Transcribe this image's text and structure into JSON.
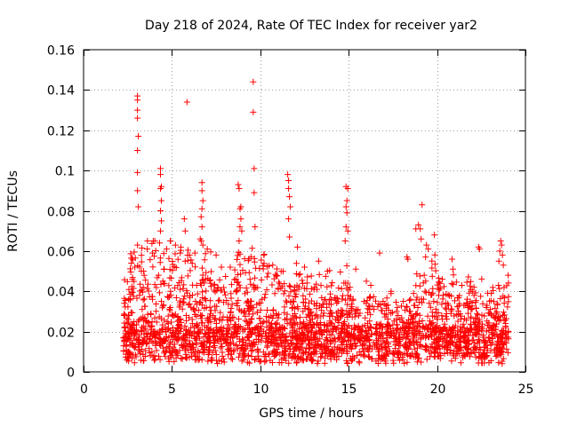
{
  "chart_data": {
    "type": "scatter",
    "title": "Day 218 of 2024, Rate Of TEC Index for receiver yar2",
    "xlabel": "GPS time / hours",
    "ylabel": "ROTI / TECUs",
    "xlim": [
      0,
      25
    ],
    "ylim": [
      0,
      0.16
    ],
    "xticks": [
      0,
      5,
      10,
      15,
      20,
      25
    ],
    "xtick_labels": [
      "0",
      "5",
      "10",
      "15",
      "20",
      "25"
    ],
    "yticks": [
      0,
      0.02,
      0.04,
      0.06,
      0.08,
      0.1,
      0.12,
      0.14,
      0.16
    ],
    "ytick_labels": [
      "0",
      "0.02",
      "0.04",
      "0.06",
      "0.08",
      "0.1",
      "0.12",
      "0.14",
      "0.16"
    ],
    "grid": true,
    "marker": "plus",
    "color": "#ff0000",
    "series": [
      {
        "name": "ROTI",
        "points": [
          [
            3.05,
            0.137
          ],
          [
            3.05,
            0.135
          ],
          [
            3.05,
            0.13
          ],
          [
            3.05,
            0.126
          ],
          [
            3.1,
            0.117
          ],
          [
            3.05,
            0.11
          ],
          [
            3.05,
            0.099
          ],
          [
            3.05,
            0.09
          ],
          [
            3.1,
            0.082
          ],
          [
            3.05,
            0.063
          ],
          [
            5.85,
            0.134
          ],
          [
            9.6,
            0.144
          ],
          [
            9.6,
            0.129
          ],
          [
            9.65,
            0.101
          ],
          [
            9.65,
            0.089
          ],
          [
            9.7,
            0.072
          ],
          [
            4.35,
            0.101
          ],
          [
            4.35,
            0.098
          ],
          [
            4.4,
            0.092
          ],
          [
            4.35,
            0.091
          ],
          [
            4.4,
            0.085
          ],
          [
            4.35,
            0.08
          ],
          [
            4.4,
            0.075
          ],
          [
            4.35,
            0.07
          ],
          [
            4.3,
            0.064
          ],
          [
            6.7,
            0.094
          ],
          [
            6.7,
            0.09
          ],
          [
            6.75,
            0.085
          ],
          [
            6.7,
            0.081
          ],
          [
            6.65,
            0.077
          ],
          [
            6.7,
            0.072
          ],
          [
            6.6,
            0.066
          ],
          [
            6.75,
            0.063
          ],
          [
            5.7,
            0.076
          ],
          [
            5.75,
            0.07
          ],
          [
            8.75,
            0.093
          ],
          [
            8.8,
            0.091
          ],
          [
            8.9,
            0.082
          ],
          [
            8.85,
            0.081
          ],
          [
            8.9,
            0.076
          ],
          [
            8.85,
            0.072
          ],
          [
            8.95,
            0.07
          ],
          [
            8.8,
            0.065
          ],
          [
            11.55,
            0.098
          ],
          [
            11.6,
            0.095
          ],
          [
            11.6,
            0.091
          ],
          [
            11.65,
            0.087
          ],
          [
            11.7,
            0.082
          ],
          [
            11.6,
            0.076
          ],
          [
            11.65,
            0.067
          ],
          [
            12.1,
            0.062
          ],
          [
            14.85,
            0.092
          ],
          [
            14.95,
            0.091
          ],
          [
            14.9,
            0.085
          ],
          [
            14.85,
            0.082
          ],
          [
            14.9,
            0.079
          ],
          [
            14.85,
            0.072
          ],
          [
            14.95,
            0.07
          ],
          [
            14.8,
            0.065
          ],
          [
            16.75,
            0.059
          ],
          [
            19.15,
            0.083
          ],
          [
            18.95,
            0.073
          ],
          [
            19.05,
            0.071
          ],
          [
            18.8,
            0.071
          ],
          [
            19.1,
            0.066
          ],
          [
            19.4,
            0.063
          ],
          [
            19.5,
            0.061
          ],
          [
            19.35,
            0.057
          ],
          [
            19.85,
            0.068
          ],
          [
            18.3,
            0.057
          ],
          [
            18.35,
            0.056
          ],
          [
            20.9,
            0.051
          ],
          [
            20.85,
            0.056
          ],
          [
            22.35,
            0.062
          ],
          [
            22.4,
            0.061
          ],
          [
            23.6,
            0.065
          ],
          [
            23.65,
            0.063
          ],
          [
            23.55,
            0.06
          ],
          [
            23.7,
            0.058
          ],
          [
            23.5,
            0.055
          ],
          [
            23.75,
            0.053
          ],
          [
            7.0,
            0.061
          ],
          [
            7.5,
            0.058
          ],
          [
            10.2,
            0.058
          ],
          [
            10.7,
            0.053
          ],
          [
            12.5,
            0.052
          ],
          [
            13.3,
            0.055
          ],
          [
            13.8,
            0.05
          ],
          [
            15.4,
            0.051
          ],
          [
            16.0,
            0.045
          ],
          [
            17.4,
            0.04
          ],
          [
            20.3,
            0.046
          ],
          [
            21.4,
            0.043
          ],
          [
            22.0,
            0.04
          ],
          [
            2.7,
            0.054
          ],
          [
            2.9,
            0.052
          ],
          [
            3.6,
            0.061
          ],
          [
            3.9,
            0.059
          ],
          [
            4.7,
            0.061
          ],
          [
            5.2,
            0.063
          ],
          [
            5.5,
            0.062
          ],
          [
            6.0,
            0.058
          ],
          [
            6.3,
            0.059
          ],
          [
            7.8,
            0.052
          ],
          [
            8.3,
            0.052
          ]
        ]
      }
    ]
  }
}
